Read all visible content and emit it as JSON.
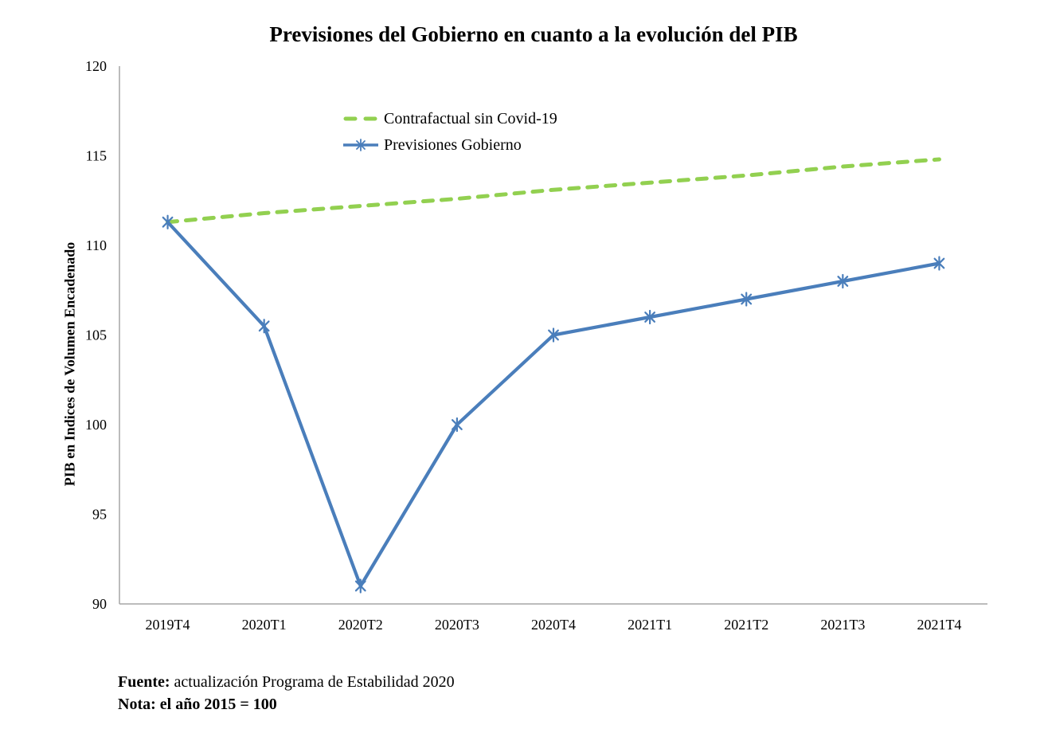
{
  "chart_data": {
    "type": "line",
    "title": "Previsiones del Gobierno en cuanto a la evolución del PIB",
    "xlabel": "",
    "ylabel": "PIB en Indices de Volumen Encadenado",
    "categories": [
      "2019T4",
      "2020T1",
      "2020T2",
      "2020T3",
      "2020T4",
      "2021T1",
      "2021T2",
      "2021T3",
      "2021T4"
    ],
    "series": [
      {
        "name": "Contrafactual sin Covid-19",
        "style": "dashed",
        "marker": "none",
        "color": "#92D050",
        "values": [
          111.3,
          111.8,
          112.2,
          112.6,
          113.1,
          113.5,
          113.9,
          114.4,
          114.8
        ]
      },
      {
        "name": "Previsiones Gobierno",
        "style": "solid",
        "marker": "asterisk",
        "color": "#4A7EBB",
        "values": [
          111.3,
          105.5,
          91.0,
          100.0,
          105.0,
          106.0,
          107.0,
          108.0,
          109.0
        ]
      }
    ],
    "ylim": [
      90,
      120
    ],
    "ytick_step": 5,
    "yticks": [
      "90",
      "95",
      "100",
      "105",
      "110",
      "115",
      "120"
    ],
    "grid": false,
    "legend_position": "upper-left-inside",
    "axis_color": "#A6A6A6",
    "text_color": "#000000"
  },
  "footer": {
    "fuente_label": "Fuente:",
    "fuente_text": " actualización Programa de Estabilidad 2020",
    "nota": "Nota: el año 2015 = 100"
  }
}
